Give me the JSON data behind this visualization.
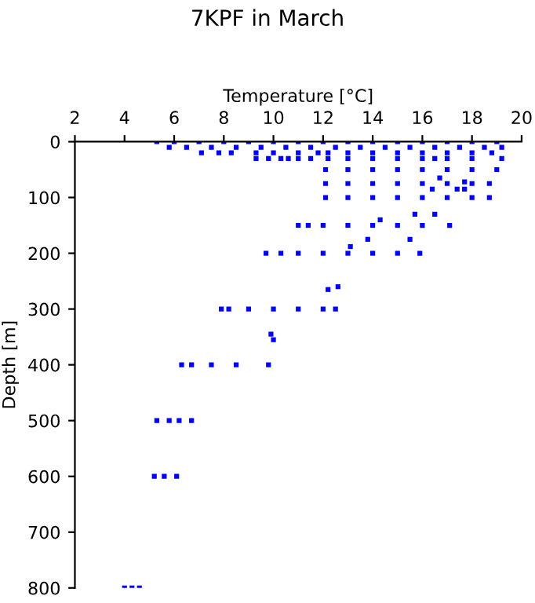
{
  "chart_data": {
    "type": "scatter",
    "title": "7KPF in March",
    "xlabel": "Temperature [°C]",
    "ylabel": "Depth [m]",
    "marker": "square",
    "grid": false,
    "legend": false,
    "xlim": [
      2,
      20
    ],
    "xticks": [
      2,
      4,
      6,
      8,
      10,
      12,
      14,
      16,
      18,
      20
    ],
    "ylim": [
      800,
      0
    ],
    "yticks": [
      0,
      100,
      200,
      300,
      400,
      500,
      600,
      700,
      800
    ],
    "series": [
      {
        "color": "#0000ff",
        "x": [
          5.3,
          6,
          7,
          8,
          9,
          10,
          11,
          12,
          13,
          14,
          15,
          16,
          17,
          18,
          19,
          5.8,
          6.5,
          7.5,
          8.5,
          9.5,
          10.5,
          11.5,
          12.5,
          13.5,
          14.5,
          15.5,
          16.5,
          17.5,
          18.5,
          19.2,
          7.1,
          7.8,
          8.3,
          9.3,
          10,
          11,
          11.8,
          12.2,
          13,
          14,
          15,
          16,
          17,
          18,
          18.8,
          9.3,
          9.8,
          10.3,
          10.6,
          11,
          11.5,
          12.2,
          13,
          14,
          15,
          16,
          16.5,
          17,
          18,
          19.2,
          12.1,
          13,
          14,
          15,
          16,
          17,
          18,
          19,
          16.7,
          17.7,
          12.1,
          13,
          14,
          15,
          16,
          17,
          18,
          18.7,
          16.4,
          17.4,
          17.7,
          12.1,
          13,
          14,
          15,
          16,
          17,
          18,
          18.7,
          15.7,
          16.5,
          14.3,
          11,
          11.4,
          12,
          13,
          14,
          15,
          16,
          17.1,
          13.8,
          15.5,
          13.1,
          9.7,
          10.3,
          11,
          12,
          13,
          14,
          15,
          15.9,
          12.6,
          12.2,
          7.9,
          8.2,
          9,
          10,
          11,
          12,
          12.5,
          9.9,
          10,
          6.3,
          6.7,
          7.5,
          8.5,
          9.8,
          5.3,
          5.8,
          6.2,
          6.7,
          5.2,
          5.6,
          6.1,
          4,
          4.3,
          4.6
        ],
        "values": [
          0,
          0,
          0,
          0,
          0,
          0,
          0,
          0,
          0,
          0,
          0,
          0,
          0,
          0,
          0,
          10,
          10,
          10,
          10,
          10,
          10,
          10,
          10,
          10,
          10,
          10,
          10,
          10,
          10,
          10,
          20,
          20,
          20,
          20,
          20,
          20,
          20,
          20,
          20,
          20,
          20,
          20,
          20,
          20,
          20,
          30,
          30,
          30,
          30,
          30,
          30,
          30,
          30,
          30,
          30,
          30,
          30,
          30,
          30,
          30,
          50,
          50,
          50,
          50,
          50,
          50,
          50,
          50,
          65,
          72,
          75,
          75,
          75,
          75,
          75,
          75,
          75,
          75,
          85,
          85,
          85,
          100,
          100,
          100,
          100,
          100,
          100,
          100,
          100,
          130,
          130,
          140,
          150,
          150,
          150,
          150,
          150,
          150,
          150,
          150,
          175,
          175,
          188,
          200,
          200,
          200,
          200,
          200,
          200,
          200,
          200,
          260,
          265,
          300,
          300,
          300,
          300,
          300,
          300,
          300,
          345,
          355,
          400,
          400,
          400,
          400,
          400,
          500,
          500,
          500,
          500,
          600,
          600,
          600,
          800,
          800,
          800
        ]
      }
    ]
  }
}
